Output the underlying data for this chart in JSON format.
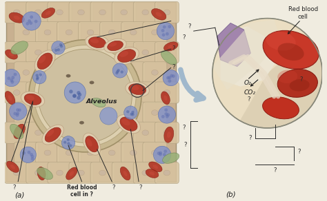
{
  "bg_color": "#f0ece0",
  "fig_width": 4.74,
  "fig_height": 2.92,
  "dpi": 100,
  "label_a": "(a)",
  "label_b": "(b)",
  "alveolus_text": "Alveolus",
  "red_blood_cell_label": "Red blood\ncell in ?",
  "red_blood_cell_label_b": "Red blood\ncell",
  "o2_label": "O₂",
  "co2_label": "CO₂",
  "line_color": "#2a2a2a",
  "text_color": "#222222",
  "panel_a_bg": "#c8b090",
  "alv_wall_color": "#d4c4a0",
  "alv_inner_color": "#ddd0b8",
  "alv_space_color": "#c8b890",
  "rbc_color": "#b03020",
  "rbc_dark": "#801810",
  "rbc_light": "#d05040",
  "blue_cell_color": "#8090c0",
  "blue_cell_dark": "#5060a0",
  "green_cell_color": "#90a870",
  "green_cell_dark": "#607050",
  "spot_color": "#c0a888",
  "spot_edge": "#a89070",
  "capillary_wall": "#e0c8a8",
  "circ_bg": "#d8c8a8",
  "circ_alv_space": "#e0d4b8",
  "circ_red": "#c03828",
  "circ_dark_red": "#903020",
  "circ_purple": "#907898",
  "circ_wall": "#ddd0b0",
  "arrow_color": "#a0b8cc",
  "bracket_color": "#555555"
}
